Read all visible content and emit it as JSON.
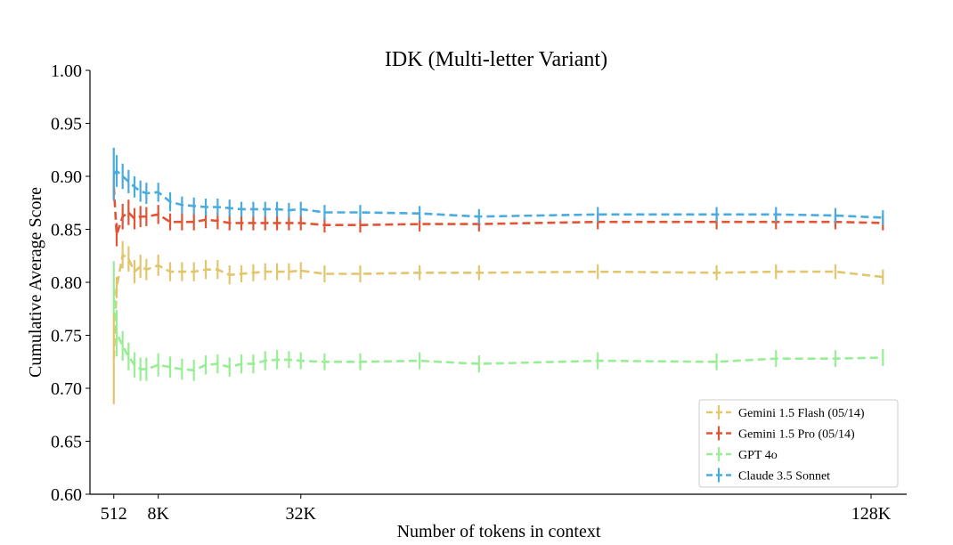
{
  "chart_data": {
    "type": "line",
    "title": "IDK (Multi-letter Variant)",
    "xlabel": "Number of tokens in context",
    "ylabel": "Cumulative Average Score",
    "xlim": [
      -3500,
      134000
    ],
    "ylim": [
      0.6,
      1.0
    ],
    "x_ticks": [
      {
        "value": 512,
        "label": "512"
      },
      {
        "value": 8000,
        "label": "8K"
      },
      {
        "value": 32000,
        "label": "32K"
      },
      {
        "value": 128000,
        "label": "128K"
      }
    ],
    "y_ticks": [
      {
        "value": 0.6,
        "label": "0.60"
      },
      {
        "value": 0.65,
        "label": "0.65"
      },
      {
        "value": 0.7,
        "label": "0.70"
      },
      {
        "value": 0.75,
        "label": "0.75"
      },
      {
        "value": 0.8,
        "label": "0.80"
      },
      {
        "value": 0.85,
        "label": "0.85"
      },
      {
        "value": 0.9,
        "label": "0.90"
      },
      {
        "value": 0.95,
        "label": "0.95"
      },
      {
        "value": 1.0,
        "label": "1.00"
      }
    ],
    "grid": false,
    "legend_position": "bottom-right",
    "x": [
      512,
      1000,
      2000,
      3000,
      4000,
      5000,
      6000,
      8000,
      10000,
      12000,
      14000,
      16000,
      18000,
      20000,
      22000,
      24000,
      26000,
      28000,
      30000,
      32000,
      36000,
      42000,
      52000,
      62000,
      82000,
      102000,
      112000,
      122000,
      130000
    ],
    "series": [
      {
        "name": "Gemini 1.5 Flash (05/14)",
        "color": "#E3C56E",
        "values": [
          0.728,
          0.795,
          0.826,
          0.822,
          0.81,
          0.815,
          0.812,
          0.816,
          0.81,
          0.81,
          0.81,
          0.812,
          0.812,
          0.807,
          0.808,
          0.809,
          0.81,
          0.81,
          0.81,
          0.811,
          0.808,
          0.808,
          0.809,
          0.809,
          0.81,
          0.809,
          0.81,
          0.81,
          0.805
        ],
        "errors": [
          0.043,
          0.01,
          0.013,
          0.012,
          0.011,
          0.011,
          0.01,
          0.01,
          0.009,
          0.009,
          0.009,
          0.009,
          0.009,
          0.009,
          0.008,
          0.008,
          0.008,
          0.008,
          0.008,
          0.008,
          0.008,
          0.008,
          0.007,
          0.007,
          0.007,
          0.007,
          0.007,
          0.007,
          0.007
        ]
      },
      {
        "name": "Gemini 1.5 Pro (05/14)",
        "color": "#E05535",
        "values": [
          0.89,
          0.845,
          0.862,
          0.866,
          0.86,
          0.862,
          0.862,
          0.864,
          0.857,
          0.857,
          0.857,
          0.859,
          0.858,
          0.856,
          0.856,
          0.856,
          0.856,
          0.856,
          0.856,
          0.856,
          0.854,
          0.854,
          0.855,
          0.855,
          0.857,
          0.857,
          0.857,
          0.857,
          0.856
        ],
        "errors": [
          0.012,
          0.011,
          0.012,
          0.012,
          0.01,
          0.01,
          0.009,
          0.009,
          0.008,
          0.008,
          0.008,
          0.008,
          0.008,
          0.007,
          0.007,
          0.007,
          0.007,
          0.007,
          0.007,
          0.007,
          0.007,
          0.007,
          0.007,
          0.007,
          0.007,
          0.007,
          0.007,
          0.007,
          0.007
        ]
      },
      {
        "name": "GPT 4o",
        "color": "#98EE94",
        "values": [
          0.795,
          0.752,
          0.74,
          0.73,
          0.722,
          0.718,
          0.718,
          0.722,
          0.72,
          0.718,
          0.717,
          0.722,
          0.723,
          0.72,
          0.723,
          0.723,
          0.726,
          0.727,
          0.727,
          0.726,
          0.725,
          0.725,
          0.726,
          0.723,
          0.726,
          0.725,
          0.728,
          0.728,
          0.729
        ],
        "errors": [
          0.025,
          0.022,
          0.014,
          0.013,
          0.012,
          0.011,
          0.011,
          0.011,
          0.01,
          0.01,
          0.01,
          0.009,
          0.009,
          0.009,
          0.009,
          0.009,
          0.009,
          0.009,
          0.008,
          0.008,
          0.008,
          0.008,
          0.008,
          0.008,
          0.008,
          0.008,
          0.008,
          0.008,
          0.008
        ]
      },
      {
        "name": "Claude 3.5 Sonnet",
        "color": "#4AABDE",
        "values": [
          0.902,
          0.905,
          0.9,
          0.895,
          0.89,
          0.886,
          0.884,
          0.885,
          0.876,
          0.873,
          0.872,
          0.871,
          0.871,
          0.87,
          0.869,
          0.869,
          0.869,
          0.869,
          0.868,
          0.869,
          0.866,
          0.866,
          0.865,
          0.862,
          0.864,
          0.864,
          0.864,
          0.863,
          0.861
        ],
        "errors": [
          0.025,
          0.015,
          0.012,
          0.011,
          0.01,
          0.01,
          0.01,
          0.009,
          0.009,
          0.008,
          0.008,
          0.008,
          0.008,
          0.008,
          0.007,
          0.007,
          0.007,
          0.007,
          0.007,
          0.007,
          0.007,
          0.007,
          0.007,
          0.007,
          0.007,
          0.007,
          0.007,
          0.007,
          0.007
        ]
      }
    ]
  }
}
